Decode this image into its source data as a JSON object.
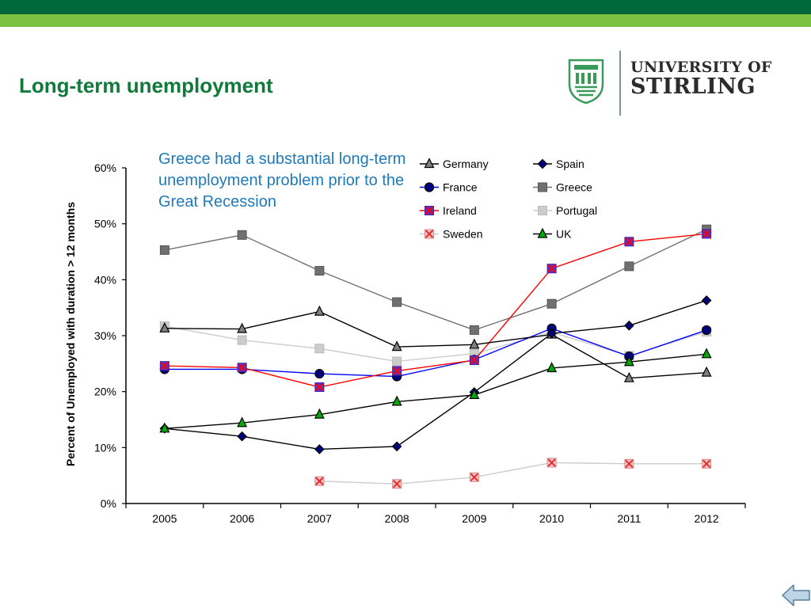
{
  "header": {
    "title": "Long-term unemployment",
    "colors": {
      "dark_band": "#00683b",
      "light_band": "#7cc242",
      "title": "#0f7a3a"
    }
  },
  "logo": {
    "line1": "UNIVERSITY OF",
    "line2": "STIRLING",
    "crest_icon": "university-crest-icon"
  },
  "annotation": {
    "text": "Greece had a substantial long-term unemployment problem prior to the Great Recession",
    "color": "#1f7ab8"
  },
  "nav": {
    "back_icon": "back-arrow-icon"
  },
  "chart_data": {
    "type": "line",
    "ylabel": "Percent of Unemployed with duration > 12 months",
    "xlabel": "",
    "ylim": [
      0,
      60
    ],
    "yticks": [
      0,
      10,
      20,
      30,
      40,
      50,
      60
    ],
    "ytick_labels": [
      "0%",
      "10%",
      "20%",
      "30%",
      "40%",
      "50%",
      "60%"
    ],
    "categories": [
      "2005",
      "2006",
      "2007",
      "2008",
      "2009",
      "2010",
      "2011",
      "2012"
    ],
    "grid": false,
    "legend_position": "top-right",
    "series": [
      {
        "name": "Germany",
        "line_color": "#000000",
        "marker": "triangle",
        "marker_fill": "#808080",
        "values": [
          31.3,
          31.2,
          34.3,
          28.0,
          28.4,
          30.2,
          22.4,
          23.4
        ]
      },
      {
        "name": "Spain",
        "line_color": "#000000",
        "marker": "diamond",
        "marker_fill": "#00007f",
        "values": [
          13.4,
          12.0,
          9.7,
          10.2,
          19.9,
          30.4,
          31.8,
          36.3
        ]
      },
      {
        "name": "France",
        "line_color": "#0000ff",
        "marker": "circle",
        "marker_fill": "#00007f",
        "values": [
          24.0,
          24.0,
          23.2,
          22.7,
          25.7,
          31.3,
          26.3,
          31.0
        ]
      },
      {
        "name": "Greece",
        "line_color": "#707070",
        "marker": "square",
        "marker_fill": "#707070",
        "values": [
          45.3,
          48.0,
          41.6,
          36.0,
          31.0,
          35.7,
          42.4,
          49.0
        ]
      },
      {
        "name": "Ireland",
        "line_color": "#ff0000",
        "marker": "cross-square",
        "marker_fill": "#5533cc",
        "values": [
          24.6,
          24.3,
          20.8,
          23.7,
          25.6,
          42.0,
          46.8,
          48.2
        ]
      },
      {
        "name": "Portugal",
        "line_color": "#cccccc",
        "marker": "square",
        "marker_fill": "#cccccc",
        "values": [
          31.7,
          29.2,
          27.7,
          25.4,
          26.8,
          30.6,
          26.4,
          30.7
        ]
      },
      {
        "name": "Sweden",
        "line_color": "#cccccc",
        "marker": "cross-square",
        "marker_fill": "#ff7777",
        "values": [
          null,
          null,
          4.0,
          3.5,
          4.7,
          7.3,
          7.1,
          7.1
        ]
      },
      {
        "name": "UK",
        "line_color": "#000000",
        "marker": "triangle",
        "marker_fill": "#00aa00",
        "values": [
          13.4,
          14.4,
          15.9,
          18.2,
          19.4,
          24.2,
          25.3,
          26.7
        ]
      }
    ]
  }
}
